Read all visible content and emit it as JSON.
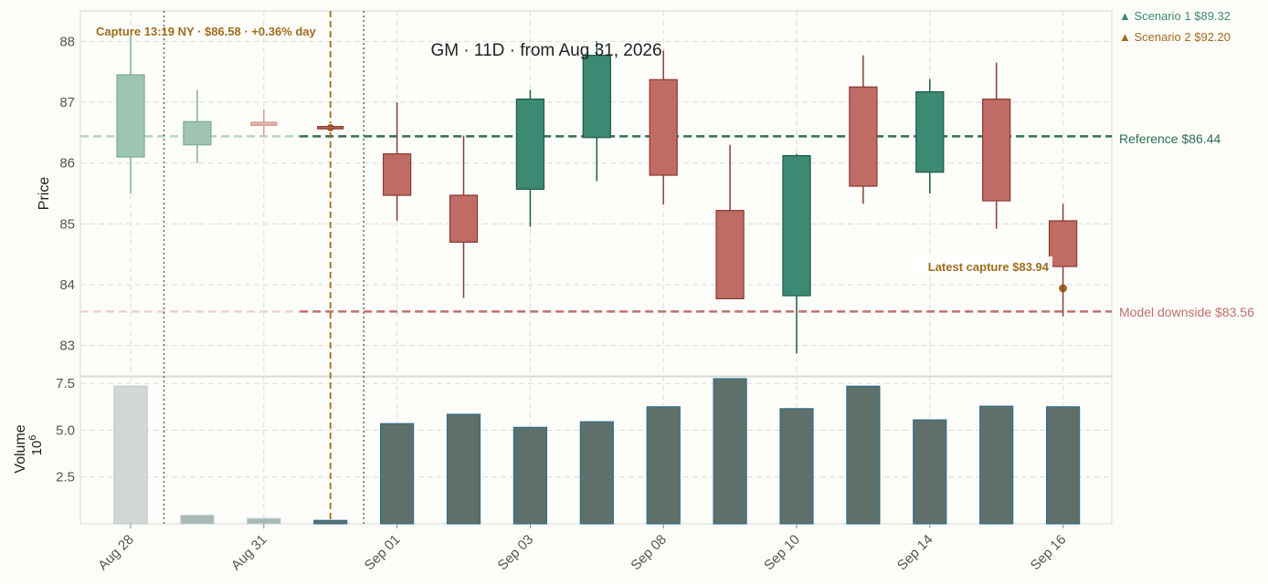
{
  "chart_data": {
    "type": "candlestick",
    "title": "GM  ·  11D  ·  from Aug 31, 2026",
    "ylabel": "Price",
    "volume_label": "Volume",
    "volume_exponent": "10",
    "volume_exponent_power": "6",
    "ylim": [
      82.5,
      88.5
    ],
    "volume_ylim": [
      0,
      7.85
    ],
    "price_ticks": [
      "83",
      "84",
      "85",
      "86",
      "87",
      "88"
    ],
    "volume_ticks": [
      "2.5",
      "5.0",
      "7.5"
    ],
    "x_tick_labels": [
      "Aug 28",
      "Aug 31",
      "Sep 01",
      "Sep 03",
      "Sep 08",
      "Sep 10",
      "Sep 14",
      "Sep 16"
    ],
    "candles": [
      {
        "label": "Aug 28",
        "open": 86.1,
        "high": 88.1,
        "low": 85.5,
        "close": 87.45,
        "volume": 7.35,
        "faded": true
      },
      {
        "label": "",
        "open": 86.3,
        "high": 87.2,
        "low": 86.0,
        "close": 86.68,
        "volume": 0.45,
        "faded": true
      },
      {
        "label": "Aug 31",
        "open": 86.67,
        "high": 86.88,
        "low": 86.45,
        "close": 86.62,
        "volume": 0.28,
        "faded": true
      },
      {
        "label": "",
        "open": 86.6,
        "high": 86.63,
        "low": 86.56,
        "close": 86.57,
        "volume": 0.18,
        "faded": false
      },
      {
        "label": "Sep 01",
        "open": 86.15,
        "high": 87.0,
        "low": 85.05,
        "close": 85.47,
        "volume": 5.35,
        "faded": false
      },
      {
        "label": "",
        "open": 85.47,
        "high": 86.45,
        "low": 83.78,
        "close": 84.7,
        "volume": 5.85,
        "faded": false
      },
      {
        "label": "Sep 03",
        "open": 85.57,
        "high": 87.2,
        "low": 84.95,
        "close": 87.05,
        "volume": 5.15,
        "faded": false
      },
      {
        "label": "",
        "open": 86.42,
        "high": 88.0,
        "low": 85.7,
        "close": 87.77,
        "volume": 5.45,
        "faded": false
      },
      {
        "label": "Sep 08",
        "open": 87.37,
        "high": 87.85,
        "low": 85.32,
        "close": 85.8,
        "volume": 6.25,
        "faded": false
      },
      {
        "label": "",
        "open": 85.22,
        "high": 86.3,
        "low": 83.77,
        "close": 83.77,
        "volume": 7.75,
        "faded": false
      },
      {
        "label": "Sep 10",
        "open": 83.82,
        "high": 86.15,
        "low": 82.87,
        "close": 86.12,
        "volume": 6.15,
        "faded": false
      },
      {
        "label": "",
        "open": 87.25,
        "high": 87.77,
        "low": 85.33,
        "close": 85.62,
        "volume": 7.35,
        "faded": false
      },
      {
        "label": "Sep 14",
        "open": 85.85,
        "high": 87.38,
        "low": 85.5,
        "close": 87.17,
        "volume": 5.55,
        "faded": false
      },
      {
        "label": "",
        "open": 87.05,
        "high": 87.65,
        "low": 84.92,
        "close": 85.38,
        "volume": 6.28,
        "faded": false
      },
      {
        "label": "Sep 16",
        "open": 85.05,
        "high": 85.33,
        "low": 83.48,
        "close": 84.3,
        "volume": 6.25,
        "faded": false
      }
    ],
    "reference_line": {
      "label": "Reference $86.44",
      "value": 86.44,
      "color": "#2e6e58"
    },
    "downside_line": {
      "label": "Model downside $83.56",
      "value": 83.56,
      "color": "#c07070"
    },
    "scenarios": [
      {
        "label": "▲ Scenario 1 $89.32",
        "value": 89.32,
        "color": "#3d8a74"
      },
      {
        "label": "▲ Scenario 2 $92.20",
        "value": 92.2,
        "color": "#a06c1c"
      }
    ],
    "capture_marker": {
      "label": "Capture 13:19 NY · $86.58 · +0.36% day",
      "value": 86.58,
      "index": 3
    },
    "latest_marker": {
      "label": "Latest capture $83.94",
      "value": 83.94,
      "index": 14
    },
    "session_separators": [
      0.5,
      3.5
    ],
    "colors": {
      "up": "#3d8a74",
      "up_edge": "#1f5e4c",
      "down": "#c06c64",
      "down_edge": "#8a3f38",
      "faded_up": "#9fc4b4",
      "faded_down": "#ead6d0",
      "volume": "#5f6f6a",
      "volume_edge": "#2f6f8f",
      "volume_faded": "#d3d8d4",
      "marker": "#a06c1c"
    }
  }
}
